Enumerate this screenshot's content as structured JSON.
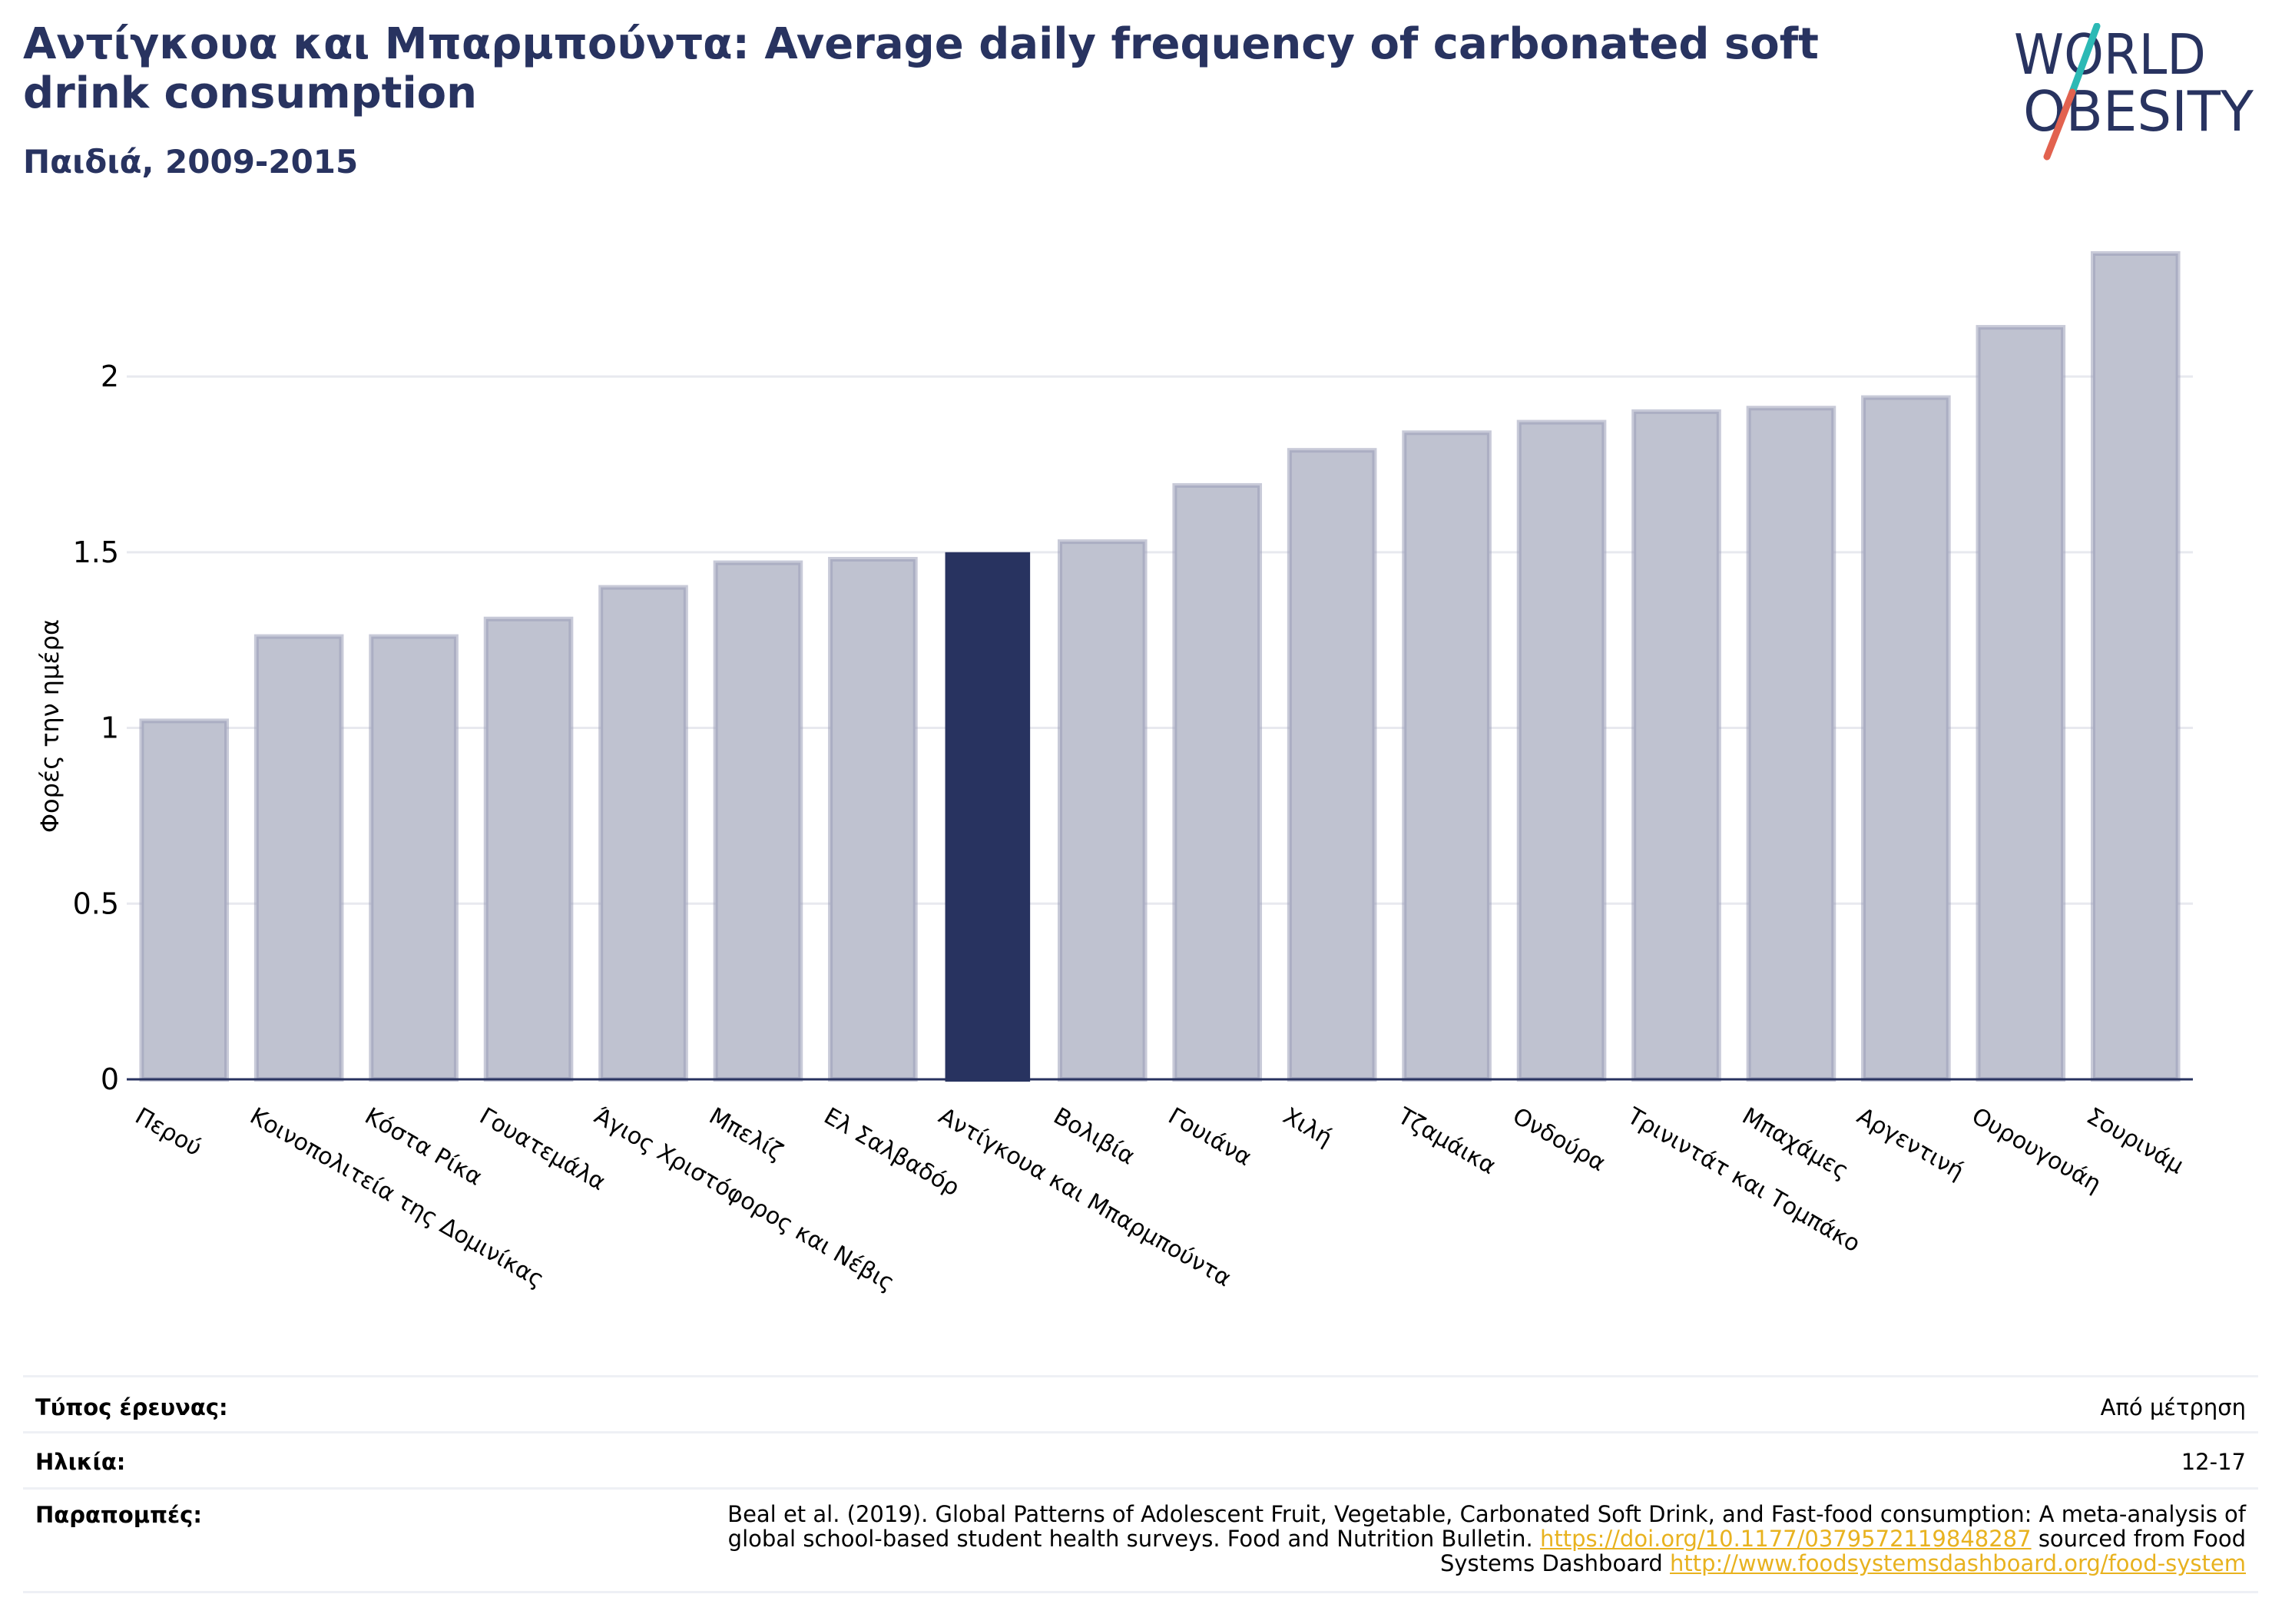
{
  "header": {
    "title": "Αντίγκουα και Μπαρμπούντα: Average daily frequency of carbonated soft drink consumption",
    "subtitle": "Παιδιά, 2009-2015"
  },
  "logo": {
    "line1": "WORLD",
    "line2": "OBESITY",
    "colors": {
      "text": "#283360",
      "slash_top": "#2cb9b5",
      "slash_bottom": "#e2624f"
    }
  },
  "colors": {
    "bar": "#bfc2d0",
    "bar_border": "#9a9fb8",
    "highlight": "#283360",
    "grid": "#e8e9ef",
    "axis": "#283360"
  },
  "chart_data": {
    "type": "bar",
    "ylabel": "Φορές την ημέρα",
    "ylim": [
      0,
      2.35
    ],
    "yticks": [
      0,
      0.5,
      1,
      1.5,
      2
    ],
    "ytick_labels": [
      "0",
      "0.5",
      "1",
      "1.5",
      "2"
    ],
    "grid": true,
    "highlight_category": "Αντίγκουα και Μπαρμπούντα",
    "categories": [
      "Περού",
      "Κοινοπολιτεία της Δομινίκας",
      "Κόστα Ρίκα",
      "Γουατεμάλα",
      "Άγιος Χριστόφορος και Νέβις",
      "Μπελίζ",
      "Ελ Σαλβαδόρ",
      "Αντίγκουα και Μπαρμπούντα",
      "Βολιβία",
      "Γουιάνα",
      "Χιλή",
      "Τζαμάικα",
      "Ονδούρα",
      "Τρινιντάτ και Τομπάκο",
      "Μπαχάμες",
      "Αργεντινή",
      "Ουρουγουάη",
      "Σουρινάμ"
    ],
    "values": [
      1.02,
      1.26,
      1.26,
      1.31,
      1.4,
      1.47,
      1.48,
      1.5,
      1.53,
      1.69,
      1.79,
      1.84,
      1.87,
      1.9,
      1.91,
      1.94,
      2.14,
      2.35
    ]
  },
  "meta": {
    "survey_type_label": "Τύπος έρευνας:",
    "survey_type_value": "Από μέτρηση",
    "age_label": "Ηλικία:",
    "age_value": "12-17",
    "refs_label": "Παραπομπές:",
    "refs_text_1": "Beal et al. (2019). Global Patterns of Adolescent Fruit, Vegetable, Carbonated Soft Drink, and Fast-food consumption: A meta-analysis of",
    "refs_text_2": "global school-based student health surveys. Food and Nutrition Bulletin.",
    "refs_link_1": "https://doi.org/10.1177/0379572119848287",
    "refs_text_3": "sourced from Food",
    "refs_text_4": "Systems Dashboard",
    "refs_link_2": "http://www.foodsystemsdashboard.org/food-system"
  }
}
